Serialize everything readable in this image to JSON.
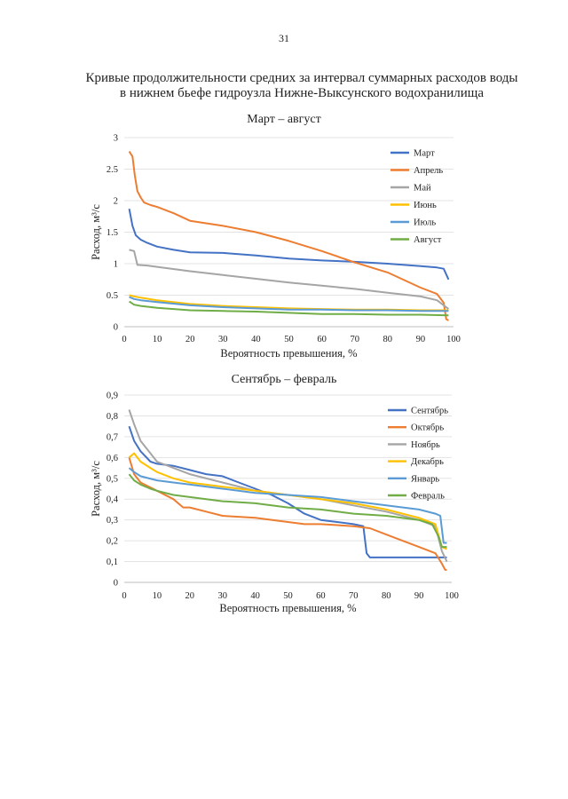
{
  "page": {
    "number": "31",
    "title_line1": "Кривые продолжительности средних за интервал суммарных расходов воды",
    "title_line2": "в нижнем бьефе гидроузла Нижне-Выксунского водохранилища"
  },
  "chart_data": [
    {
      "type": "line",
      "title": "Март – август",
      "xlabel": "Вероятность превышения, %",
      "ylabel": "Расход, м³/с",
      "xlim": [
        0,
        100
      ],
      "ylim": [
        0,
        3
      ],
      "xticks": [
        0,
        10,
        20,
        30,
        40,
        50,
        60,
        70,
        80,
        90,
        100
      ],
      "yticks": [
        0,
        0.5,
        1,
        1.5,
        2,
        2.5,
        3
      ],
      "ytick_labels": [
        "0",
        "0.5",
        "1",
        "1.5",
        "2",
        "2.5",
        "3"
      ],
      "grid": "horizontal",
      "legend": "top-right",
      "series": [
        {
          "name": "Март",
          "color": "#4472C4",
          "x": [
            1.5,
            2.5,
            3.5,
            5,
            7,
            10,
            15,
            20,
            30,
            40,
            50,
            60,
            70,
            80,
            90,
            95,
            97,
            98.5
          ],
          "y": [
            1.87,
            1.6,
            1.45,
            1.38,
            1.33,
            1.27,
            1.22,
            1.18,
            1.17,
            1.13,
            1.08,
            1.05,
            1.03,
            1.0,
            0.96,
            0.94,
            0.92,
            0.75
          ]
        },
        {
          "name": "Апрель",
          "color": "#ED7D31",
          "x": [
            1.5,
            2.5,
            3.2,
            4,
            5,
            6,
            8,
            10,
            15,
            20,
            30,
            40,
            50,
            60,
            70,
            80,
            90,
            95,
            97,
            97.8,
            98.5
          ],
          "y": [
            2.78,
            2.7,
            2.4,
            2.15,
            2.05,
            1.97,
            1.93,
            1.9,
            1.8,
            1.68,
            1.6,
            1.5,
            1.36,
            1.2,
            1.02,
            0.86,
            0.62,
            0.52,
            0.38,
            0.12,
            0.1
          ]
        },
        {
          "name": "Май",
          "color": "#A5A5A5",
          "x": [
            1.5,
            3,
            4,
            7,
            10,
            20,
            30,
            40,
            50,
            60,
            70,
            80,
            90,
            95,
            98.5
          ],
          "y": [
            1.22,
            1.2,
            0.98,
            0.97,
            0.95,
            0.88,
            0.82,
            0.76,
            0.7,
            0.65,
            0.6,
            0.54,
            0.48,
            0.42,
            0.28
          ]
        },
        {
          "name": "Июнь",
          "color": "#FFC000",
          "x": [
            1.5,
            3,
            5,
            10,
            20,
            30,
            40,
            50,
            60,
            70,
            80,
            90,
            98.5
          ],
          "y": [
            0.5,
            0.48,
            0.46,
            0.42,
            0.36,
            0.33,
            0.31,
            0.29,
            0.28,
            0.27,
            0.27,
            0.26,
            0.26
          ]
        },
        {
          "name": "Июль",
          "color": "#5B9BD5",
          "x": [
            1.5,
            3,
            5,
            10,
            20,
            30,
            40,
            50,
            60,
            70,
            80,
            90,
            98.5
          ],
          "y": [
            0.47,
            0.44,
            0.42,
            0.39,
            0.34,
            0.31,
            0.29,
            0.27,
            0.27,
            0.26,
            0.26,
            0.25,
            0.25
          ]
        },
        {
          "name": "Август",
          "color": "#70AD47",
          "x": [
            1.5,
            3,
            5,
            10,
            15,
            20,
            30,
            40,
            50,
            60,
            70,
            80,
            90,
            98.5
          ],
          "y": [
            0.4,
            0.35,
            0.33,
            0.3,
            0.28,
            0.26,
            0.25,
            0.24,
            0.22,
            0.2,
            0.2,
            0.19,
            0.19,
            0.18
          ]
        }
      ]
    },
    {
      "type": "line",
      "title": "Сентябрь – февраль",
      "xlabel": "Вероятность превышения, %",
      "ylabel": "Расход, м³/с",
      "xlim": [
        0,
        100
      ],
      "ylim": [
        0,
        0.9
      ],
      "xticks": [
        0,
        10,
        20,
        30,
        40,
        50,
        60,
        70,
        80,
        90,
        100
      ],
      "yticks": [
        0,
        0.1,
        0.2,
        0.3,
        0.4,
        0.5,
        0.6,
        0.7,
        0.8,
        0.9
      ],
      "ytick_labels": [
        "0",
        "0,1",
        "0,2",
        "0,3",
        "0,4",
        "0,5",
        "0,6",
        "0,7",
        "0,8",
        "0,9"
      ],
      "grid": "horizontal",
      "legend": "top-right",
      "series": [
        {
          "name": "Сентябрь",
          "color": "#4472C4",
          "x": [
            1.5,
            3,
            5,
            8,
            10,
            15,
            20,
            25,
            30,
            35,
            40,
            45,
            50,
            55,
            60,
            65,
            70,
            73,
            74,
            75,
            80,
            90,
            97,
            98.5
          ],
          "y": [
            0.75,
            0.68,
            0.63,
            0.58,
            0.57,
            0.56,
            0.54,
            0.52,
            0.51,
            0.48,
            0.45,
            0.42,
            0.38,
            0.33,
            0.3,
            0.29,
            0.28,
            0.27,
            0.14,
            0.12,
            0.12,
            0.12,
            0.12,
            0.12
          ]
        },
        {
          "name": "Октябрь",
          "color": "#ED7D31",
          "x": [
            1.5,
            3,
            5,
            10,
            15,
            18,
            20,
            25,
            30,
            40,
            50,
            55,
            60,
            70,
            75,
            80,
            85,
            90,
            95,
            97,
            98,
            98.5
          ],
          "y": [
            0.6,
            0.52,
            0.48,
            0.44,
            0.4,
            0.36,
            0.36,
            0.34,
            0.32,
            0.31,
            0.29,
            0.28,
            0.28,
            0.27,
            0.26,
            0.23,
            0.2,
            0.17,
            0.14,
            0.09,
            0.06,
            0.06
          ]
        },
        {
          "name": "Ноябрь",
          "color": "#A5A5A5",
          "x": [
            1.5,
            3,
            5,
            8,
            10,
            15,
            20,
            30,
            40,
            50,
            60,
            70,
            80,
            90,
            95,
            97,
            98.5
          ],
          "y": [
            0.83,
            0.76,
            0.68,
            0.62,
            0.58,
            0.55,
            0.52,
            0.48,
            0.44,
            0.42,
            0.4,
            0.37,
            0.34,
            0.3,
            0.27,
            0.15,
            0.1
          ]
        },
        {
          "name": "Декабрь",
          "color": "#FFC000",
          "x": [
            1.5,
            3,
            5,
            8,
            10,
            15,
            20,
            30,
            40,
            50,
            60,
            70,
            80,
            90,
            95,
            97,
            98.5
          ],
          "y": [
            0.6,
            0.62,
            0.58,
            0.55,
            0.53,
            0.5,
            0.48,
            0.46,
            0.44,
            0.42,
            0.4,
            0.38,
            0.35,
            0.31,
            0.28,
            0.17,
            0.16
          ]
        },
        {
          "name": "Январь",
          "color": "#5B9BD5",
          "x": [
            1.5,
            3,
            5,
            10,
            15,
            20,
            30,
            40,
            50,
            60,
            70,
            80,
            90,
            95,
            96.5,
            97.5,
            98.5
          ],
          "y": [
            0.55,
            0.53,
            0.51,
            0.49,
            0.48,
            0.47,
            0.45,
            0.43,
            0.42,
            0.41,
            0.39,
            0.37,
            0.35,
            0.33,
            0.32,
            0.19,
            0.19
          ]
        },
        {
          "name": "Февраль",
          "color": "#70AD47",
          "x": [
            1.5,
            3,
            5,
            8,
            10,
            15,
            20,
            30,
            40,
            50,
            60,
            70,
            80,
            90,
            94,
            96,
            97,
            98.5
          ],
          "y": [
            0.52,
            0.49,
            0.47,
            0.45,
            0.44,
            0.42,
            0.41,
            0.39,
            0.38,
            0.36,
            0.35,
            0.33,
            0.32,
            0.3,
            0.28,
            0.22,
            0.17,
            0.17
          ]
        }
      ]
    }
  ]
}
